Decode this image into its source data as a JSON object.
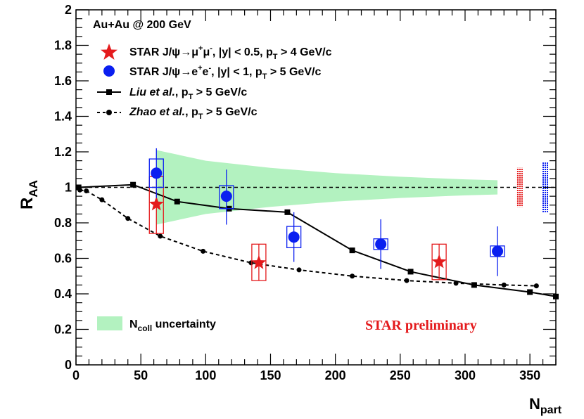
{
  "chart_data": {
    "type": "scatter",
    "xlabel": "N",
    "xlabel_sub": "part",
    "ylabel": "R",
    "ylabel_sub": "AA",
    "xlim": [
      0,
      370
    ],
    "ylim": [
      0,
      2
    ],
    "x_ticks": [
      0,
      50,
      100,
      150,
      200,
      250,
      300,
      350
    ],
    "y_ticks": [
      0,
      0.2,
      0.4,
      0.6,
      0.8,
      1,
      1.2,
      1.4,
      1.6,
      1.8,
      2
    ],
    "x_tick_labels": [
      "0",
      "50",
      "100",
      "150",
      "200",
      "250",
      "300",
      "350"
    ],
    "y_tick_labels": [
      "0",
      "0.2",
      "0.4",
      "0.6",
      "0.8",
      "1",
      "1.2",
      "1.4",
      "1.6",
      "1.8",
      "2"
    ],
    "reference_line": 1,
    "legend_title": "Au+Au @ 200 GeV",
    "legend": [
      {
        "key": "star_mu",
        "parts": [
          "STAR J/ψ→μ",
          "+",
          "μ",
          "-",
          ", |y| < 0.5, p",
          "T",
          " > 4 GeV/c"
        ]
      },
      {
        "key": "star_e",
        "parts": [
          "STAR J/ψ→e",
          "+",
          "e",
          "-",
          ", |y| < 1, p",
          "T",
          " > 5 GeV/c"
        ]
      },
      {
        "key": "liu",
        "italic": "Liu et al.",
        "rest": [
          ", p",
          "T",
          " > 5 GeV/c"
        ]
      },
      {
        "key": "zhao",
        "italic": "Zhao et al.",
        "rest": [
          ", p",
          "T",
          " > 5 GeV/c"
        ]
      }
    ],
    "ncoll_label": [
      "N",
      "coll",
      " uncertainty"
    ],
    "annotation": "STAR preliminary",
    "series": [
      {
        "name": "STAR J/ψ→μ+μ-, |y| < 0.5, pT > 4 GeV/c",
        "color": "#e41a1c",
        "marker": "star",
        "points": [
          {
            "x": 62,
            "y": 0.905,
            "sys_lo": 0.74,
            "sys_hi": 1.06,
            "stat_lo": 0.74,
            "stat_hi": 1.06
          },
          {
            "x": 141,
            "y": 0.575,
            "sys_lo": 0.475,
            "sys_hi": 0.68,
            "stat_lo": 0.475,
            "stat_hi": 0.68
          },
          {
            "x": 280,
            "y": 0.58,
            "sys_lo": 0.48,
            "sys_hi": 0.68,
            "stat_lo": 0.48,
            "stat_hi": 0.68
          }
        ]
      },
      {
        "name": "STAR J/ψ→e+e-, |y| < 1, pT > 5 GeV/c",
        "color": "#0a1ff0",
        "marker": "circle",
        "points": [
          {
            "x": 62,
            "y": 1.08,
            "sys_lo": 1.0,
            "sys_hi": 1.16,
            "stat_lo": 0.94,
            "stat_hi": 1.22
          },
          {
            "x": 116,
            "y": 0.95,
            "sys_lo": 0.88,
            "sys_hi": 1.01,
            "stat_lo": 0.79,
            "stat_hi": 1.1
          },
          {
            "x": 168,
            "y": 0.72,
            "sys_lo": 0.66,
            "sys_hi": 0.78,
            "stat_lo": 0.58,
            "stat_hi": 0.86
          },
          {
            "x": 235,
            "y": 0.68,
            "sys_lo": 0.65,
            "sys_hi": 0.71,
            "stat_lo": 0.54,
            "stat_hi": 0.82
          },
          {
            "x": 325,
            "y": 0.64,
            "sys_lo": 0.61,
            "sys_hi": 0.67,
            "stat_lo": 0.5,
            "stat_hi": 0.78
          }
        ]
      }
    ],
    "model_curves": [
      {
        "name": "Liu et al., pT > 5 GeV/c",
        "style": "solid",
        "marker": "square",
        "x": [
          2,
          44,
          78,
          118,
          163,
          213,
          258,
          307,
          350,
          370
        ],
        "y": [
          1.0,
          1.015,
          0.92,
          0.88,
          0.86,
          0.645,
          0.525,
          0.45,
          0.41,
          0.385
        ]
      },
      {
        "name": "Zhao et al., pT > 5 GeV/c",
        "style": "dashed",
        "marker": "circle",
        "x": [
          3,
          8,
          20,
          40,
          65,
          98,
          135,
          172,
          213,
          255,
          293,
          330,
          355
        ],
        "y": [
          0.985,
          0.98,
          0.93,
          0.825,
          0.725,
          0.64,
          0.575,
          0.535,
          0.5,
          0.475,
          0.46,
          0.45,
          0.445
        ]
      }
    ],
    "ncoll_band": {
      "color": "#b3f2c0",
      "x": [
        62,
        100,
        150,
        200,
        250,
        300,
        325
      ],
      "y_hi": [
        1.21,
        1.15,
        1.11,
        1.08,
        1.06,
        1.045,
        1.04
      ],
      "y_lo": [
        0.79,
        0.85,
        0.89,
        0.92,
        0.94,
        0.955,
        0.96
      ]
    },
    "global_uncertainties": [
      {
        "x": 342,
        "lo": 0.89,
        "hi": 1.11,
        "color": "#e41a1c",
        "pattern": "dots"
      },
      {
        "x": 362,
        "lo": 0.86,
        "hi": 1.14,
        "color": "#0a1ff0",
        "pattern": "dots"
      }
    ]
  }
}
